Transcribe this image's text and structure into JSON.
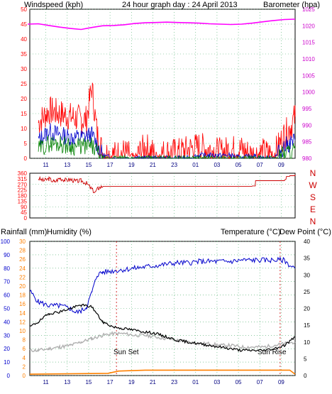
{
  "header": {
    "windspeed_label": "Windspeed (kph)",
    "title": "24 hour graph day : 24 April 2013",
    "barometer_label": "Barometer (hpa)"
  },
  "labels": {
    "rainfall": "Rainfall (mm)",
    "humidity": "Humidity (%)",
    "temperature": "Temperature (°C)",
    "dewpoint": "Dew Point (°C)",
    "sun_set": "Sun Set",
    "sun_rise": "Sun Rise",
    "wind_dirs": [
      "N",
      "W",
      "S",
      "E",
      "N"
    ]
  },
  "colors": {
    "wind_gust": "#ff0000",
    "wind_avg": "#0000cc",
    "wind_low": "#008000",
    "barometer": "#ff00ff",
    "direction": "#cc0000",
    "temperature": "#000000",
    "dewpoint": "#b0b0b0",
    "humidity": "#0000cc",
    "rainfall": "#ff8000",
    "axis_left": "#ff0000",
    "axis_right": "#cc00cc",
    "axis_rain": "#ff8000",
    "axis_hum": "#0000cc",
    "hours": "#000080"
  },
  "chart_data": [
    {
      "type": "line",
      "name": "wind",
      "x_ticks": [
        "11",
        "13",
        "15",
        "17",
        "19",
        "21",
        "23",
        "01",
        "03",
        "05",
        "07",
        "09"
      ],
      "ylim": [
        0,
        50
      ],
      "y_ticks": [
        0,
        5,
        10,
        15,
        20,
        25,
        30,
        35,
        40,
        45,
        50
      ],
      "y2lim": [
        980,
        1025
      ],
      "y2_ticks": [
        980,
        985,
        990,
        995,
        1000,
        1005,
        1010,
        1015,
        1020,
        1025
      ],
      "series": [
        {
          "name": "Windspeed (kph)",
          "role": "gust",
          "x": [
            10,
            11,
            12,
            13,
            14,
            14.5,
            15,
            15.5,
            16,
            17,
            18,
            19,
            20,
            21,
            22,
            23,
            24,
            25,
            26,
            27,
            28,
            29,
            30,
            31,
            32,
            33,
            33.5,
            34
          ],
          "values": [
            12,
            16,
            15,
            14,
            13,
            13,
            24,
            8,
            2,
            1,
            2,
            0,
            4,
            1,
            2,
            2,
            3,
            4,
            3,
            2,
            3,
            3,
            1,
            2,
            1,
            8,
            10,
            14
          ]
        },
        {
          "name": "avg",
          "role": "avg",
          "x": [
            10,
            11,
            12,
            13,
            14,
            15,
            16,
            17,
            18,
            19,
            20,
            21,
            22,
            23,
            24,
            25,
            26,
            27,
            28,
            29,
            30,
            31,
            32,
            33,
            34
          ],
          "values": [
            6,
            9,
            8,
            7,
            7,
            8,
            1,
            0,
            0,
            0,
            0,
            0,
            0,
            0,
            0,
            1,
            1,
            1,
            1,
            0,
            1,
            0,
            0,
            4,
            6
          ]
        },
        {
          "name": "low",
          "role": "low",
          "x": [
            10,
            11,
            12,
            13,
            14,
            15,
            16,
            17,
            18,
            19,
            20,
            21,
            22,
            23,
            24,
            25,
            26,
            27,
            28,
            29,
            30,
            31,
            32,
            33,
            34
          ],
          "values": [
            3,
            5,
            5,
            4,
            4,
            4,
            0,
            0,
            0,
            0,
            0,
            0,
            0,
            0,
            0,
            0,
            0,
            0,
            0,
            0,
            0,
            0,
            0,
            2,
            3
          ]
        },
        {
          "name": "Barometer (hpa)",
          "role": "barometer",
          "axis": "right",
          "x": [
            9,
            10,
            11,
            12,
            13,
            14,
            15,
            16,
            17,
            18,
            19,
            20,
            21,
            22,
            23,
            24,
            25,
            26,
            27,
            28,
            29,
            30,
            31,
            32,
            33,
            34
          ],
          "values": [
            1020.5,
            1020.6,
            1020.1,
            1019.6,
            1019.2,
            1018.9,
            1019.5,
            1020.0,
            1020.1,
            1020.3,
            1020.7,
            1020.9,
            1021.0,
            1021.1,
            1021.0,
            1020.9,
            1020.8,
            1020.6,
            1020.5,
            1020.4,
            1020.5,
            1020.8,
            1021.2,
            1021.6,
            1021.9,
            1022.0
          ]
        }
      ]
    },
    {
      "type": "scatter",
      "name": "direction",
      "ylim": [
        0,
        360
      ],
      "y_ticks": [
        0,
        45,
        90,
        135,
        180,
        225,
        270,
        315,
        360
      ],
      "series": [
        {
          "name": "direction",
          "x": [
            10,
            10.5,
            11,
            11.5,
            12,
            12.5,
            13,
            13.5,
            14,
            14.5,
            15,
            15.3,
            15.6,
            16,
            20,
            25,
            30,
            30.3,
            33,
            33.2,
            33.5,
            34
          ],
          "values": [
            318,
            300,
            315,
            290,
            320,
            305,
            310,
            295,
            300,
            280,
            230,
            205,
            240,
            255,
            255,
            255,
            258,
            300,
            300,
            325,
            330,
            340
          ]
        }
      ]
    },
    {
      "type": "line",
      "name": "temp_hum_rain",
      "x_ticks": [
        "11",
        "13",
        "15",
        "17",
        "19",
        "21",
        "23",
        "01",
        "03",
        "05",
        "07",
        "09"
      ],
      "rain_lim": [
        0,
        30
      ],
      "rain_ticks": [
        0,
        2,
        4,
        6,
        8,
        10,
        12,
        14,
        16,
        18,
        20,
        22,
        24,
        26,
        28,
        30
      ],
      "hum_lim": [
        0,
        100
      ],
      "hum_ticks": [
        0,
        10,
        20,
        30,
        40,
        50,
        60,
        70,
        80,
        90,
        100
      ],
      "temp_lim": [
        0,
        40
      ],
      "temp_ticks": [
        0,
        5,
        10,
        15,
        20,
        25,
        30,
        35,
        40
      ],
      "series": [
        {
          "name": "Humidity (%)",
          "x": [
            9.2,
            10,
            11,
            12,
            13,
            13.5,
            14,
            14.5,
            15,
            15.5,
            16,
            17,
            18,
            19,
            20,
            21,
            22,
            23,
            24,
            25,
            26,
            27,
            28,
            29,
            30,
            31,
            32,
            33,
            33.5,
            34
          ],
          "values": [
            63,
            55,
            52,
            52,
            50,
            47,
            48,
            51,
            62,
            75,
            77,
            78,
            79,
            80,
            81,
            82,
            83,
            84,
            84,
            85,
            85,
            85,
            85,
            86,
            86,
            86,
            86,
            86,
            82,
            80
          ]
        },
        {
          "name": "Temperature (°C)",
          "axis": "temp",
          "x": [
            9.2,
            10,
            11,
            12,
            13,
            14,
            15,
            16,
            17,
            18,
            19,
            20,
            21,
            22,
            23,
            24,
            25,
            26,
            27,
            28,
            29,
            30,
            31,
            32,
            33,
            34
          ],
          "values": [
            14.5,
            16,
            18.5,
            19,
            20,
            21,
            20.5,
            16,
            14.5,
            14,
            13.5,
            13,
            12.5,
            11.5,
            10.5,
            10,
            9.5,
            9,
            8.5,
            8,
            7.5,
            7.5,
            7.5,
            8,
            9,
            11.5
          ]
        },
        {
          "name": "Dew Point (°C)",
          "axis": "temp",
          "x": [
            9.2,
            10,
            11,
            12,
            13,
            14,
            15,
            16,
            17,
            18,
            19,
            20,
            21,
            22,
            23,
            24,
            25,
            26,
            27,
            28,
            29,
            30,
            31,
            32,
            33,
            34
          ],
          "values": [
            7.5,
            7.5,
            8,
            8.5,
            9,
            10,
            11,
            12,
            12.5,
            12.5,
            12,
            12,
            11.5,
            11,
            10.5,
            10,
            9.5,
            9.5,
            9,
            9,
            8.5,
            8.5,
            8.5,
            9,
            9.5,
            10
          ]
        },
        {
          "name": "Rainfall (mm)",
          "axis": "rain",
          "x": [
            9.2,
            16.5,
            17.5,
            20,
            22,
            24,
            26,
            28,
            30,
            32,
            33.5,
            34
          ],
          "values": [
            0.3,
            0.5,
            1.0,
            1.2,
            1.2,
            1.2,
            1.2,
            1.2,
            1.2,
            1.2,
            1.2,
            0.3
          ]
        }
      ],
      "annotations": [
        "Sun Set",
        "Sun Rise"
      ]
    }
  ]
}
